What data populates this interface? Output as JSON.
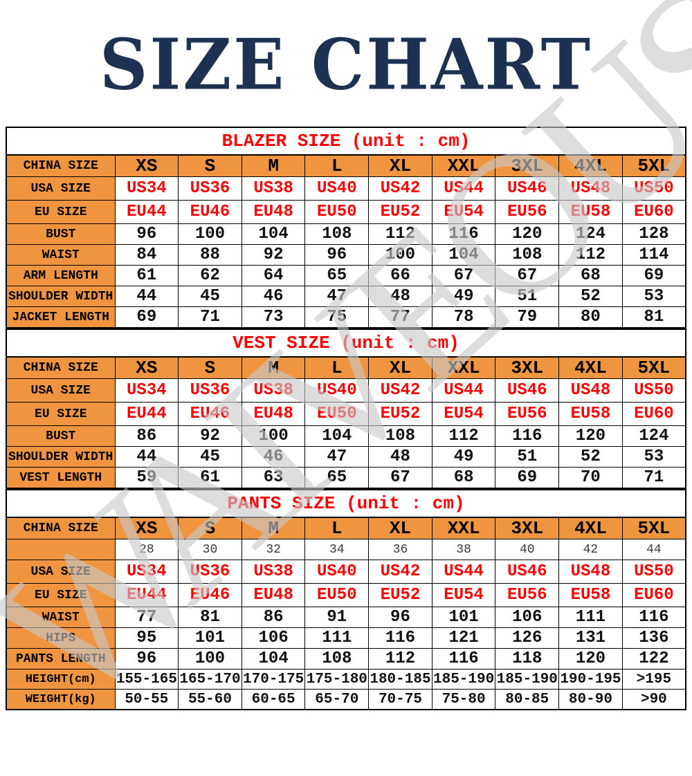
{
  "title": "SIZE CHART",
  "watermark_text": "WAIVEOUS",
  "colors": {
    "title_navy": "#1d3153",
    "accent_orange": "#f0953f",
    "value_red": "#ff0000",
    "watermark_gray": "#c9c9c9",
    "grid_black": "#000000"
  },
  "chart_data": [
    {
      "type": "table",
      "title": "BLAZER SIZE (unit : cm)",
      "columns": [
        "CHINA SIZE",
        "XS",
        "S",
        "M",
        "L",
        "XL",
        "XXL",
        "3XL",
        "4XL",
        "5XL"
      ],
      "rows": [
        {
          "kind": "china",
          "label": "CHINA SIZE",
          "values": [
            "XS",
            "S",
            "M",
            "L",
            "XL",
            "XXL",
            "3XL",
            "4XL",
            "5XL"
          ]
        },
        {
          "kind": "usa",
          "label": "USA SIZE",
          "values": [
            "US34",
            "US36",
            "US38",
            "US40",
            "US42",
            "US44",
            "US46",
            "US48",
            "US50"
          ]
        },
        {
          "kind": "eu",
          "label": "EU SIZE",
          "values": [
            "EU44",
            "EU46",
            "EU48",
            "EU50",
            "EU52",
            "EU54",
            "EU56",
            "EU58",
            "EU60"
          ]
        },
        {
          "kind": "plain",
          "label": "BUST",
          "values": [
            "96",
            "100",
            "104",
            "108",
            "112",
            "116",
            "120",
            "124",
            "128"
          ]
        },
        {
          "kind": "plain",
          "label": "WAIST",
          "values": [
            "84",
            "88",
            "92",
            "96",
            "100",
            "104",
            "108",
            "112",
            "114"
          ]
        },
        {
          "kind": "plain",
          "label": "ARM LENGTH",
          "values": [
            "61",
            "62",
            "64",
            "65",
            "66",
            "67",
            "67",
            "68",
            "69"
          ]
        },
        {
          "kind": "plain",
          "label": "SHOULDER WIDTH",
          "values": [
            "44",
            "45",
            "46",
            "47",
            "48",
            "49",
            "51",
            "52",
            "53"
          ]
        },
        {
          "kind": "plain",
          "label": "JACKET LENGTH",
          "values": [
            "69",
            "71",
            "73",
            "75",
            "77",
            "78",
            "79",
            "80",
            "81"
          ]
        }
      ]
    },
    {
      "type": "table",
      "title": "VEST SIZE (unit : cm)",
      "columns": [
        "CHINA SIZE",
        "XS",
        "S",
        "M",
        "L",
        "XL",
        "XXL",
        "3XL",
        "4XL",
        "5XL"
      ],
      "rows": [
        {
          "kind": "china",
          "label": "CHINA SIZE",
          "values": [
            "XS",
            "S",
            "M",
            "L",
            "XL",
            "XXL",
            "3XL",
            "4XL",
            "5XL"
          ]
        },
        {
          "kind": "usa",
          "label": "USA SIZE",
          "values": [
            "US34",
            "US36",
            "US38",
            "US40",
            "US42",
            "US44",
            "US46",
            "US48",
            "US50"
          ]
        },
        {
          "kind": "eu",
          "label": "EU SIZE",
          "values": [
            "EU44",
            "EU46",
            "EU48",
            "EU50",
            "EU52",
            "EU54",
            "EU56",
            "EU58",
            "EU60"
          ]
        },
        {
          "kind": "plain",
          "label": "BUST",
          "values": [
            "86",
            "92",
            "100",
            "104",
            "108",
            "112",
            "116",
            "120",
            "124"
          ]
        },
        {
          "kind": "plain",
          "label": "SHOULDER WIDTH",
          "values": [
            "44",
            "45",
            "46",
            "47",
            "48",
            "49",
            "51",
            "52",
            "53"
          ]
        },
        {
          "kind": "plain",
          "label": "VEST LENGTH",
          "values": [
            "59",
            "61",
            "63",
            "65",
            "67",
            "68",
            "69",
            "70",
            "71"
          ]
        }
      ]
    },
    {
      "type": "table",
      "title": "PANTS SIZE (unit : cm)",
      "columns": [
        "CHINA SIZE",
        "XS",
        "S",
        "M",
        "L",
        "XL",
        "XXL",
        "3XL",
        "4XL",
        "5XL"
      ],
      "rows": [
        {
          "kind": "china",
          "label": "CHINA SIZE",
          "values": [
            "XS",
            "S",
            "M",
            "L",
            "XL",
            "XXL",
            "3XL",
            "4XL",
            "5XL"
          ]
        },
        {
          "kind": "small",
          "label": "",
          "values": [
            "28",
            "30",
            "32",
            "34",
            "36",
            "38",
            "40",
            "42",
            "44"
          ]
        },
        {
          "kind": "usa",
          "label": "USA SIZE",
          "values": [
            "US34",
            "US36",
            "US38",
            "US40",
            "US42",
            "US44",
            "US46",
            "US48",
            "US50"
          ]
        },
        {
          "kind": "eu",
          "label": "EU SIZE",
          "values": [
            "EU44",
            "EU46",
            "EU48",
            "EU50",
            "EU52",
            "EU54",
            "EU56",
            "EU58",
            "EU60"
          ]
        },
        {
          "kind": "plain",
          "label": "WAIST",
          "values": [
            "77",
            "81",
            "86",
            "91",
            "96",
            "101",
            "106",
            "111",
            "116"
          ]
        },
        {
          "kind": "plain",
          "label": "HIPS",
          "values": [
            "95",
            "101",
            "106",
            "111",
            "116",
            "121",
            "126",
            "131",
            "136"
          ]
        },
        {
          "kind": "plain",
          "label": "PANTS LENGTH",
          "values": [
            "96",
            "100",
            "104",
            "108",
            "112",
            "116",
            "118",
            "120",
            "122"
          ]
        },
        {
          "kind": "range",
          "label": "HEIGHT(cm)",
          "values": [
            "155-165",
            "165-170",
            "170-175",
            "175-180",
            "180-185",
            "185-190",
            "185-190",
            "190-195",
            ">195"
          ]
        },
        {
          "kind": "range",
          "label": "WEIGHT(kg)",
          "values": [
            "50-55",
            "55-60",
            "60-65",
            "65-70",
            "70-75",
            "75-80",
            "80-85",
            "80-90",
            ">90"
          ]
        }
      ]
    }
  ]
}
